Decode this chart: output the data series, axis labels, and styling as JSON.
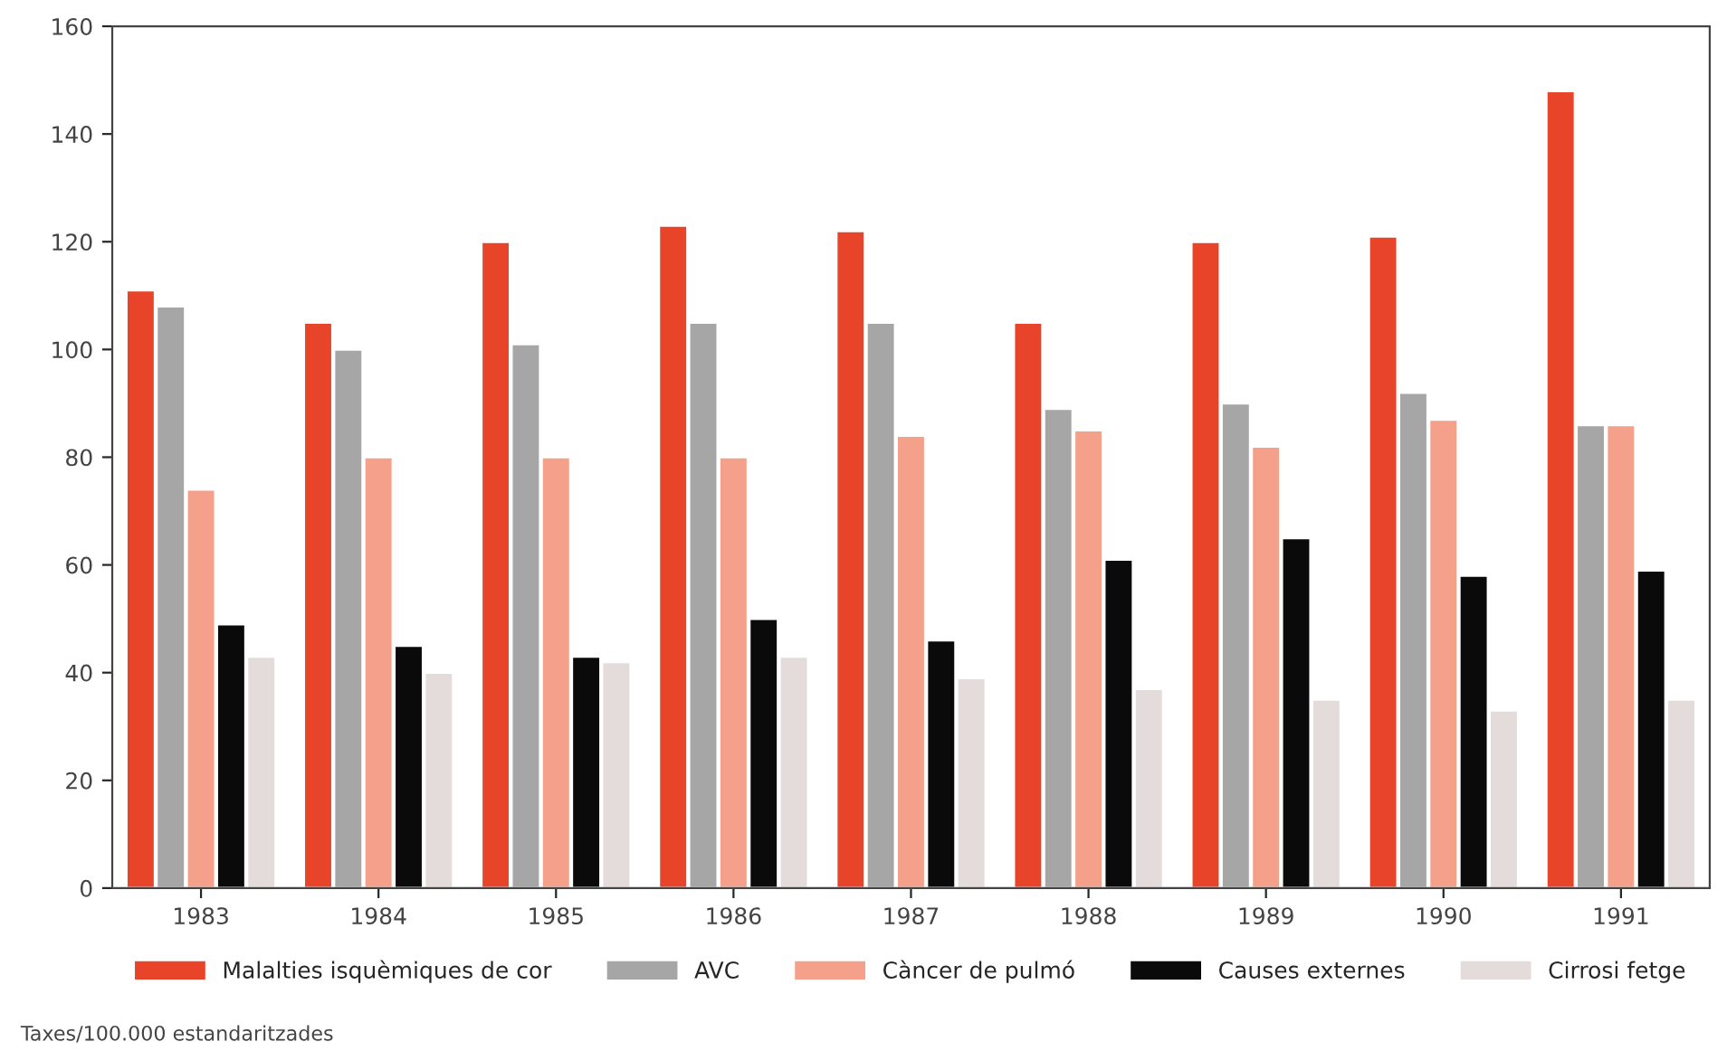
{
  "chart_data": {
    "type": "bar",
    "categories": [
      "1983",
      "1984",
      "1985",
      "1986",
      "1987",
      "1988",
      "1989",
      "1990",
      "1991"
    ],
    "series": [
      {
        "name": "Malalties isquèmiques de cor",
        "color": "#e8442a",
        "values": [
          111,
          105,
          120,
          123,
          122,
          105,
          120,
          121,
          148
        ]
      },
      {
        "name": "AVC",
        "color": "#a6a6a6",
        "values": [
          108,
          100,
          101,
          105,
          105,
          89,
          90,
          92,
          86
        ]
      },
      {
        "name": "Càncer de pulmó",
        "color": "#f4a08a",
        "values": [
          74,
          80,
          80,
          80,
          84,
          85,
          82,
          87,
          86
        ]
      },
      {
        "name": "Causes externes",
        "color": "#0a0a0a",
        "values": [
          49,
          45,
          43,
          50,
          46,
          61,
          65,
          58,
          59
        ]
      },
      {
        "name": "Cirrosi fetge",
        "color": "#e3dcda",
        "values": [
          43,
          40,
          42,
          43,
          39,
          37,
          35,
          33,
          35
        ]
      }
    ],
    "ylim": [
      0,
      160
    ],
    "yticks": [
      0,
      20,
      40,
      60,
      80,
      100,
      120,
      140,
      160
    ],
    "grid": false,
    "legend": "bottom",
    "annotations": [
      "Taxes/100.000 estandaritzades"
    ]
  }
}
